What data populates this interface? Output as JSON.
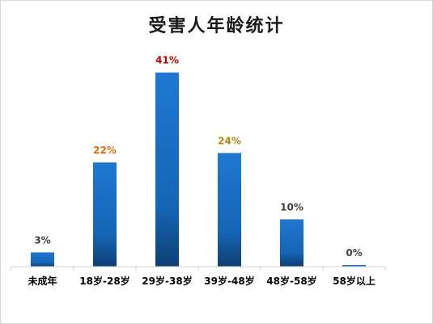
{
  "chart_data": {
    "type": "bar",
    "title": "受害人年龄统计",
    "categories": [
      "未成年",
      "18岁-28岁",
      "29岁-38岁",
      "39岁-48岁",
      "48岁-58岁",
      "58岁以上"
    ],
    "values": [
      3,
      22,
      41,
      24,
      10,
      0
    ],
    "value_labels": [
      "3%",
      "22%",
      "41%",
      "24%",
      "10%",
      "0%"
    ],
    "label_colors": [
      "#404040",
      "#e46c0a",
      "#c00000",
      "#b8860b",
      "#404040",
      "#404040"
    ],
    "bar_color": "#1f6fc0",
    "ylim": [
      0,
      43
    ],
    "grid": false,
    "legend": "none"
  }
}
